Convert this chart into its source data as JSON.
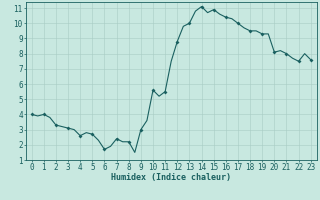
{
  "title": "",
  "xlabel": "Humidex (Indice chaleur)",
  "ylabel": "",
  "bg_color": "#c8e8e0",
  "grid_color": "#a8ccc4",
  "line_color": "#1a6060",
  "marker_color": "#1a6060",
  "xlim": [
    -0.5,
    23.5
  ],
  "ylim": [
    1,
    11.4
  ],
  "yticks": [
    1,
    2,
    3,
    4,
    5,
    6,
    7,
    8,
    9,
    10,
    11
  ],
  "xticks": [
    0,
    1,
    2,
    3,
    4,
    5,
    6,
    7,
    8,
    9,
    10,
    11,
    12,
    13,
    14,
    15,
    16,
    17,
    18,
    19,
    20,
    21,
    22,
    23
  ],
  "x": [
    0,
    0.5,
    1,
    1.5,
    2,
    2.5,
    3,
    3.5,
    4,
    4.5,
    5,
    5.5,
    6,
    6.5,
    7,
    7.5,
    8,
    8.5,
    9,
    9.5,
    10,
    10.5,
    11,
    11.5,
    12,
    12.5,
    13,
    13.5,
    14,
    14.5,
    15,
    15.5,
    16,
    16.5,
    17,
    17.5,
    18,
    18.5,
    19,
    19.5,
    20,
    20.5,
    21,
    21.5,
    22,
    22.5,
    23
  ],
  "y": [
    4.0,
    3.9,
    4.0,
    3.8,
    3.3,
    3.2,
    3.1,
    3.0,
    2.6,
    2.8,
    2.7,
    2.3,
    1.7,
    1.9,
    2.4,
    2.2,
    2.2,
    1.5,
    3.0,
    3.6,
    5.6,
    5.2,
    5.5,
    7.5,
    8.8,
    9.8,
    10.0,
    10.8,
    11.1,
    10.7,
    10.9,
    10.6,
    10.4,
    10.3,
    10.0,
    9.7,
    9.5,
    9.5,
    9.3,
    9.3,
    8.1,
    8.2,
    8.0,
    7.7,
    7.5,
    8.0,
    7.6
  ],
  "marker_x": [
    0,
    1,
    2,
    3,
    4,
    5,
    6,
    7,
    8,
    9,
    10,
    11,
    12,
    13,
    14,
    15,
    16,
    17,
    18,
    19,
    20,
    21,
    22,
    23
  ],
  "marker_y": [
    4.0,
    4.0,
    3.3,
    3.1,
    2.6,
    2.7,
    1.7,
    2.4,
    2.2,
    3.0,
    5.6,
    5.5,
    8.8,
    10.0,
    11.1,
    10.9,
    10.4,
    10.0,
    9.5,
    9.3,
    8.1,
    8.0,
    7.5,
    7.6
  ],
  "xlabel_fontsize": 6.0,
  "tick_fontsize": 5.5
}
